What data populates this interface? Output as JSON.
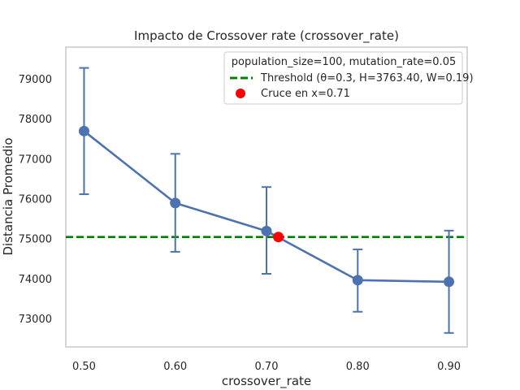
{
  "chart_data": {
    "type": "line",
    "title": "Impacto de Crossover rate (crossover_rate)",
    "xlabel": "crossover_rate",
    "ylabel": "Distancia Promedio",
    "xlim": [
      0.48,
      0.92
    ],
    "ylim": [
      72300,
      79800
    ],
    "x_ticks": [
      0.5,
      0.6,
      0.7,
      0.8,
      0.9
    ],
    "x_tick_labels": [
      "0.50",
      "0.60",
      "0.70",
      "0.80",
      "0.90"
    ],
    "y_ticks": [
      73000,
      74000,
      75000,
      76000,
      77000,
      78000,
      79000
    ],
    "y_tick_labels": [
      "73000",
      "74000",
      "75000",
      "76000",
      "77000",
      "78000",
      "79000"
    ],
    "grid": false,
    "legend_position": "top-right",
    "legend_title": "population_size=100, mutation_rate=0.05",
    "series": [
      {
        "x": [
          0.5,
          0.6,
          0.7,
          0.8,
          0.9
        ],
        "y": [
          77700,
          75900,
          75200,
          73970,
          73930
        ],
        "err_low": [
          76120,
          74680,
          74130,
          73180,
          72650
        ],
        "err_high": [
          79280,
          77130,
          76300,
          74740,
          75210
        ],
        "color": "#4c72b0"
      }
    ],
    "threshold": {
      "name": "Threshold (θ=0.3, H=3763.40, W=0.19)",
      "y": 75050,
      "color": "#008000",
      "style": "dashed"
    },
    "crossing": {
      "name": "Cruce en x=0.71",
      "x": 0.713,
      "y": 75050,
      "color": "#ff0000"
    }
  }
}
